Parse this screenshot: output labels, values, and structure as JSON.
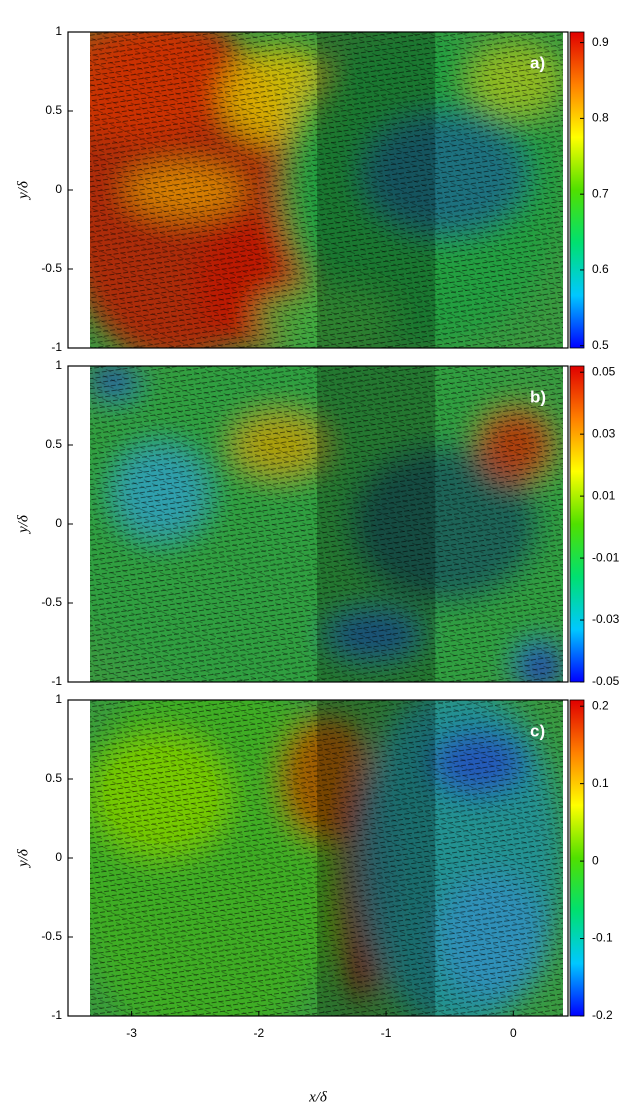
{
  "chart_data": [
    {
      "type": "vector-field",
      "panel_label": "a)",
      "ylabel": "y/δ",
      "ylim": [
        -1,
        1
      ],
      "yticks": [
        -1,
        -0.5,
        0,
        0.5,
        1
      ],
      "xlim": [
        -3.5,
        0.43
      ],
      "clim": [
        0.497,
        0.914
      ],
      "cticks": [
        0.9,
        0.8,
        0.7,
        0.6,
        0.5
      ],
      "colormap": [
        "#0000ff",
        "#00c8ff",
        "#00e070",
        "#50e000",
        "#ffff00",
        "#ff8000",
        "#e00000"
      ]
    },
    {
      "type": "vector-field",
      "panel_label": "b)",
      "ylabel": "y/δ",
      "ylim": [
        -1,
        1
      ],
      "yticks": [
        -1,
        -0.5,
        0,
        0.5,
        1
      ],
      "xlim": [
        -3.5,
        0.43
      ],
      "clim": [
        -0.05,
        0.052
      ],
      "cticks": [
        0.05,
        0.03,
        0.01,
        -0.01,
        -0.03,
        -0.05
      ],
      "colormap": [
        "#0000ff",
        "#00c8ff",
        "#00e070",
        "#50e000",
        "#ffff00",
        "#ff8000",
        "#e00000"
      ]
    },
    {
      "type": "vector-field",
      "panel_label": "c)",
      "ylabel": "y/δ",
      "xlabel": "x/δ",
      "ylim": [
        -1,
        1
      ],
      "yticks": [
        -1,
        -0.5,
        0,
        0.5,
        1
      ],
      "xlim": [
        -3.5,
        0.43
      ],
      "xticks": [
        -3,
        -2,
        -1,
        0
      ],
      "clim": [
        -0.2,
        0.208
      ],
      "cticks": [
        0.2,
        0.1,
        0,
        -0.1,
        -0.2
      ],
      "colormap": [
        "#0000ff",
        "#00c8ff",
        "#00e070",
        "#50e000",
        "#ffff00",
        "#ff8000",
        "#e00000"
      ]
    }
  ]
}
